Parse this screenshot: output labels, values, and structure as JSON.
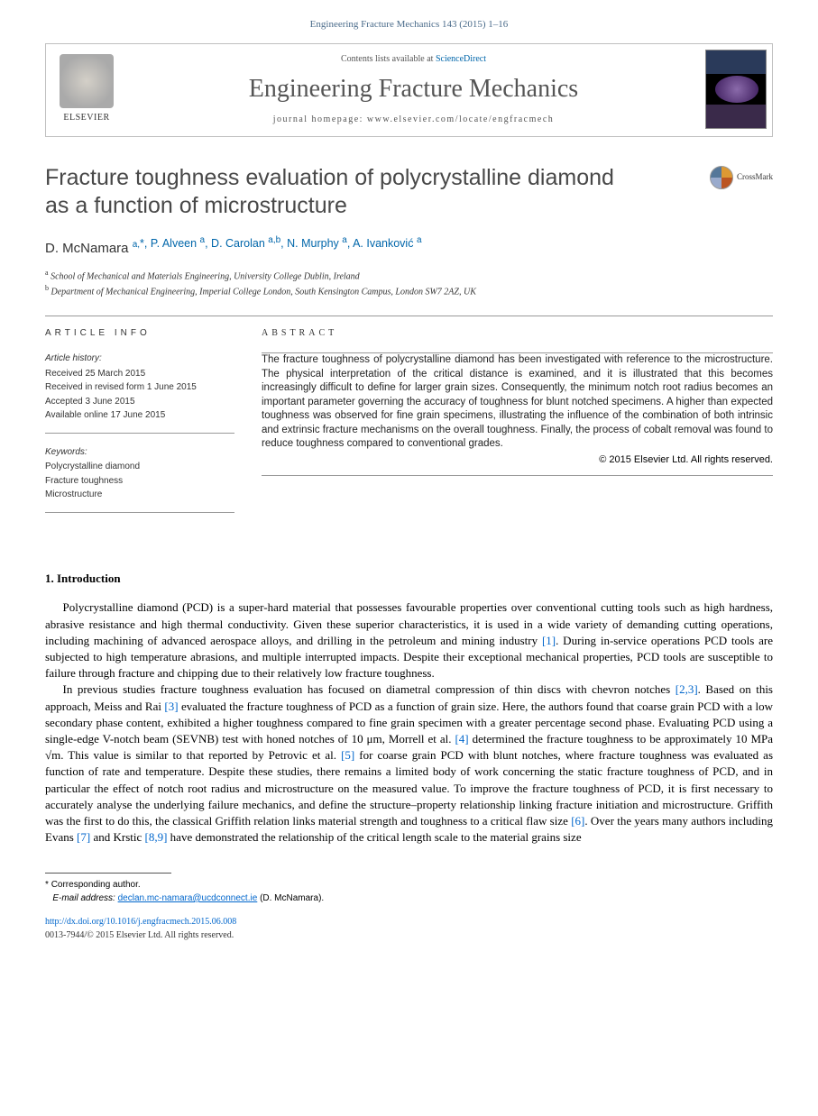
{
  "citation": "Engineering Fracture Mechanics 143 (2015) 1–16",
  "header": {
    "contents_prefix": "Contents lists available at ",
    "contents_link": "ScienceDirect",
    "journal": "Engineering Fracture Mechanics",
    "homepage_prefix": "journal homepage: ",
    "homepage_url": "www.elsevier.com/locate/engfracmech",
    "publisher": "ELSEVIER"
  },
  "title": "Fracture toughness evaluation of polycrystalline diamond as a function of microstructure",
  "crossmark": "CrossMark",
  "authors_html": "D. McNamara <sup>a,</sup><sup class='corr'>*</sup>, P. Alveen <sup>a</sup>, D. Carolan <sup>a,b</sup>, N. Murphy <sup>a</sup>, A. Ivanković <sup>a</sup>",
  "affiliations": {
    "a": "School of Mechanical and Materials Engineering, University College Dublin, Ireland",
    "b": "Department of Mechanical Engineering, Imperial College London, South Kensington Campus, London SW7 2AZ, UK"
  },
  "article_info": {
    "head": "ARTICLE INFO",
    "history_label": "Article history:",
    "history": [
      "Received 25 March 2015",
      "Received in revised form 1 June 2015",
      "Accepted 3 June 2015",
      "Available online 17 June 2015"
    ],
    "keywords_label": "Keywords:",
    "keywords": [
      "Polycrystalline diamond",
      "Fracture toughness",
      "Microstructure"
    ]
  },
  "abstract": {
    "head": "ABSTRACT",
    "text": "The fracture toughness of polycrystalline diamond has been investigated with reference to the microstructure. The physical interpretation of the critical distance is examined, and it is illustrated that this becomes increasingly difficult to define for larger grain sizes. Consequently, the minimum notch root radius becomes an important parameter governing the accuracy of toughness for blunt notched specimens. A higher than expected toughness was observed for fine grain specimens, illustrating the influence of the combination of both intrinsic and extrinsic fracture mechanisms on the overall toughness. Finally, the process of cobalt removal was found to reduce toughness compared to conventional grades.",
    "copyright": "© 2015 Elsevier Ltd. All rights reserved."
  },
  "intro": {
    "head": "1. Introduction",
    "p1_a": "Polycrystalline diamond (PCD) is a super-hard material that possesses favourable properties over conventional cutting tools such as high hardness, abrasive resistance and high thermal conductivity. Given these superior characteristics, it is used in a wide variety of demanding cutting operations, including machining of advanced aerospace alloys, and drilling in the petroleum and mining industry ",
    "p1_ref1": "[1]",
    "p1_b": ". During in-service operations PCD tools are subjected to high temperature abrasions, and multiple interrupted impacts. Despite their exceptional mechanical properties, PCD tools are susceptible to failure through fracture and chipping due to their relatively low fracture toughness.",
    "p2_a": "In previous studies fracture toughness evaluation has focused on diametral compression of thin discs with chevron notches ",
    "p2_ref1": "[2,3]",
    "p2_b": ". Based on this approach, Meiss and Rai ",
    "p2_ref2": "[3]",
    "p2_c": " evaluated the fracture toughness of PCD as a function of grain size. Here, the authors found that coarse grain PCD with a low secondary phase content, exhibited a higher toughness compared to fine grain specimen with a greater percentage second phase. Evaluating PCD using a single-edge V-notch beam (SEVNB) test with honed notches of 10 μm, Morrell et al. ",
    "p2_ref3": "[4]",
    "p2_d": " determined the fracture toughness to be approximately 10 MPa √m. This value is similar to that reported by Petrovic et al. ",
    "p2_ref4": "[5]",
    "p2_e": " for coarse grain PCD with blunt notches, where fracture toughness was evaluated as function of rate and temperature. Despite these studies, there remains a limited body of work concerning the static fracture toughness of PCD, and in particular the effect of notch root radius and microstructure on the measured value. To improve the fracture toughness of PCD, it is first necessary to accurately analyse the underlying failure mechanics, and define the structure–property relationship linking fracture initiation and microstructure. Griffith was the first to do this, the classical Griffith relation links material strength and toughness to a critical flaw size ",
    "p2_ref5": "[6]",
    "p2_f": ". Over the years many authors including Evans ",
    "p2_ref6": "[7]",
    "p2_g": " and Krstic ",
    "p2_ref7": "[8,9]",
    "p2_h": " have demonstrated the relationship of the critical length scale to the material grains size"
  },
  "footer": {
    "corr_symbol": "*",
    "corr_text": "Corresponding author.",
    "email_label": "E-mail address:",
    "email": "declan.mc-namara@ucdconnect.ie",
    "email_name": "(D. McNamara).",
    "doi": "http://dx.doi.org/10.1016/j.engfracmech.2015.06.008",
    "issn": "0013-7944/© 2015 Elsevier Ltd. All rights reserved."
  }
}
